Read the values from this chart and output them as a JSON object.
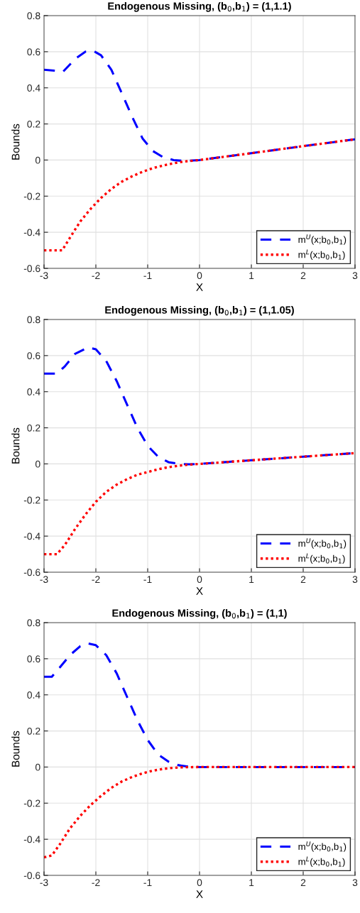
{
  "chart_data": [
    {
      "type": "line",
      "title": "Endogenous Missing, (b$_{0}$,b$_{1}$) = (1,1.1)",
      "xlabel": "X",
      "ylabel": "Bounds",
      "xlim": [
        -3,
        3
      ],
      "ylim": [
        -0.6,
        0.8
      ],
      "xticks": [
        -3,
        -2,
        -1,
        0,
        1,
        2,
        3
      ],
      "yticks": [
        -0.6,
        -0.4,
        -0.2,
        0,
        0.2,
        0.4,
        0.6,
        0.8
      ],
      "grid": true,
      "legend": "bottom right",
      "series": [
        {
          "name": "m$^{U}$(x;b$_{0}$,b$_{1}$)",
          "color": "#0000ff",
          "line_style": "dashed",
          "x": [
            -3,
            -2.8,
            -2.63,
            -2.4,
            -2.2,
            -2.05,
            -1.9,
            -1.7,
            -1.5,
            -1.3,
            -1.1,
            -0.9,
            -0.7,
            -0.5,
            -0.3,
            0,
            1,
            2,
            3
          ],
          "values": [
            0.5,
            0.495,
            0.49,
            0.56,
            0.6,
            0.605,
            0.58,
            0.5,
            0.37,
            0.24,
            0.12,
            0.05,
            0.015,
            0,
            -0.005,
            0,
            0.038,
            0.077,
            0.115
          ]
        },
        {
          "name": "m$^{L}$(x;b$_{0}$,b$_{1}$)",
          "color": "#ff0000",
          "line_style": "dotted",
          "x": [
            -3,
            -2.65,
            -2.5,
            -2.3,
            -2.1,
            -1.9,
            -1.7,
            -1.5,
            -1.3,
            -1.1,
            -0.9,
            -0.7,
            -0.5,
            -0.3,
            0,
            1,
            2,
            3
          ],
          "values": [
            -0.5,
            -0.5,
            -0.43,
            -0.34,
            -0.27,
            -0.21,
            -0.16,
            -0.12,
            -0.09,
            -0.065,
            -0.045,
            -0.03,
            -0.018,
            -0.008,
            0,
            0.038,
            0.077,
            0.115
          ]
        }
      ]
    },
    {
      "type": "line",
      "title": "Endogenous Missing, (b$_{0}$,b$_{1}$) = (1,1.05)",
      "xlabel": "X",
      "ylabel": "Bounds",
      "xlim": [
        -3,
        3
      ],
      "ylim": [
        -0.6,
        0.8
      ],
      "xticks": [
        -3,
        -2,
        -1,
        0,
        1,
        2,
        3
      ],
      "yticks": [
        -0.6,
        -0.4,
        -0.2,
        0,
        0.2,
        0.4,
        0.6,
        0.8
      ],
      "grid": true,
      "legend": "bottom right",
      "series": [
        {
          "name": "m$^{U}$(x;b$_{0}$,b$_{1}$)",
          "color": "#0000ff",
          "line_style": "dashed",
          "x": [
            -3,
            -2.75,
            -2.6,
            -2.4,
            -2.15,
            -2,
            -1.8,
            -1.6,
            -1.4,
            -1.2,
            -1,
            -0.8,
            -0.6,
            -0.4,
            -0.2,
            0,
            1,
            2,
            3
          ],
          "values": [
            0.5,
            0.5,
            0.54,
            0.61,
            0.645,
            0.635,
            0.57,
            0.46,
            0.33,
            0.2,
            0.1,
            0.04,
            0.01,
            0,
            -0.002,
            0,
            0.02,
            0.04,
            0.06
          ]
        },
        {
          "name": "m$^{L}$(x;b$_{0}$,b$_{1}$)",
          "color": "#ff0000",
          "line_style": "dotted",
          "x": [
            -3,
            -2.75,
            -2.6,
            -2.4,
            -2.2,
            -2,
            -1.8,
            -1.6,
            -1.4,
            -1.2,
            -1,
            -0.8,
            -0.6,
            -0.4,
            -0.2,
            0,
            1,
            2,
            3
          ],
          "values": [
            -0.5,
            -0.5,
            -0.45,
            -0.36,
            -0.28,
            -0.21,
            -0.155,
            -0.115,
            -0.085,
            -0.06,
            -0.045,
            -0.03,
            -0.018,
            -0.01,
            -0.004,
            0,
            0.02,
            0.04,
            0.06
          ]
        }
      ]
    },
    {
      "type": "line",
      "title": "Endogenous Missing, (b$_{0}$,b$_{1}$) = (1,1)",
      "xlabel": "X",
      "ylabel": "Bounds",
      "xlim": [
        -3,
        3
      ],
      "ylim": [
        -0.6,
        0.8
      ],
      "xticks": [
        -3,
        -2,
        -1,
        0,
        1,
        2,
        3
      ],
      "yticks": [
        -0.6,
        -0.4,
        -0.2,
        0,
        0.2,
        0.4,
        0.6,
        0.8
      ],
      "grid": true,
      "legend": "bottom right",
      "series": [
        {
          "name": "m$^{U}$(x;b$_{0}$,b$_{1}$)",
          "color": "#0000ff",
          "line_style": "dashed",
          "x": [
            -3,
            -2.85,
            -2.7,
            -2.5,
            -2.3,
            -2.15,
            -2,
            -1.8,
            -1.6,
            -1.4,
            -1.2,
            -1,
            -0.8,
            -0.6,
            -0.4,
            -0.2,
            0,
            3
          ],
          "values": [
            0.5,
            0.5,
            0.55,
            0.62,
            0.67,
            0.685,
            0.675,
            0.62,
            0.52,
            0.39,
            0.26,
            0.15,
            0.07,
            0.03,
            0.01,
            0.002,
            0,
            0
          ]
        },
        {
          "name": "m$^{L}$(x;b$_{0}$,b$_{1}$)",
          "color": "#ff0000",
          "line_style": "dotted",
          "x": [
            -3,
            -2.85,
            -2.7,
            -2.5,
            -2.3,
            -2.1,
            -1.9,
            -1.7,
            -1.5,
            -1.3,
            -1.1,
            -0.9,
            -0.7,
            -0.5,
            -0.3,
            0,
            3
          ],
          "values": [
            -0.5,
            -0.49,
            -0.43,
            -0.34,
            -0.27,
            -0.21,
            -0.16,
            -0.115,
            -0.08,
            -0.055,
            -0.035,
            -0.02,
            -0.01,
            -0.004,
            -0.001,
            0,
            0
          ]
        }
      ]
    }
  ]
}
